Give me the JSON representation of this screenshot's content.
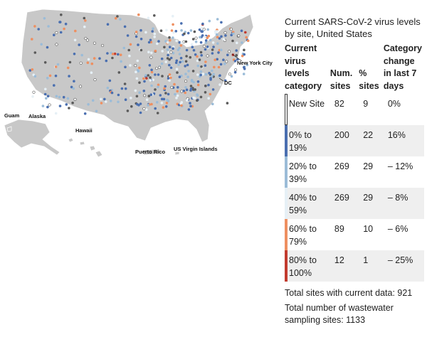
{
  "map": {
    "labels": {
      "guam": "Guam",
      "alaska": "Alaska",
      "hawaii": "Hawaii",
      "puerto_rico": "Puerto Rico",
      "usvi": "US Virgin Islands",
      "dc": "DC",
      "new_york_city": "New York City"
    },
    "colors": {
      "land": "#c8c8c8",
      "border": "#ffffff",
      "new_site": "#ffffff",
      "no_data": "#5a5a5a"
    }
  },
  "legend": {
    "title": "Current SARS-CoV-2 virus levels by site, United States",
    "headers": {
      "category": "Current virus levels category",
      "num_sites": "Num. sites",
      "pct_sites": "% sites",
      "change": "Category change in last 7 days"
    },
    "rows": [
      {
        "category": "New Site",
        "num_sites": "82",
        "pct_sites": "9",
        "change": "0%",
        "color": "#ffffff"
      },
      {
        "category": "0% to 19%",
        "num_sites": "200",
        "pct_sites": "22",
        "change": "16%",
        "color": "#4a6fb0"
      },
      {
        "category": "20% to 39%",
        "num_sites": "269",
        "pct_sites": "29",
        "change": "– 12%",
        "color": "#9bbcd8"
      },
      {
        "category": "40% to 59%",
        "num_sites": "269",
        "pct_sites": "29",
        "change": "– 8%",
        "color": "#e6f0f6"
      },
      {
        "category": "60% to 79%",
        "num_sites": "89",
        "pct_sites": "10",
        "change": "– 6%",
        "color": "#ee8f60"
      },
      {
        "category": "80% to 100%",
        "num_sites": "12",
        "pct_sites": "1",
        "change": "– 25%",
        "color": "#c23b2f"
      }
    ]
  },
  "footer": {
    "total_current": "Total sites with current data: 921",
    "total_sampling": "Total number of wastewater sampling sites: 1133"
  }
}
